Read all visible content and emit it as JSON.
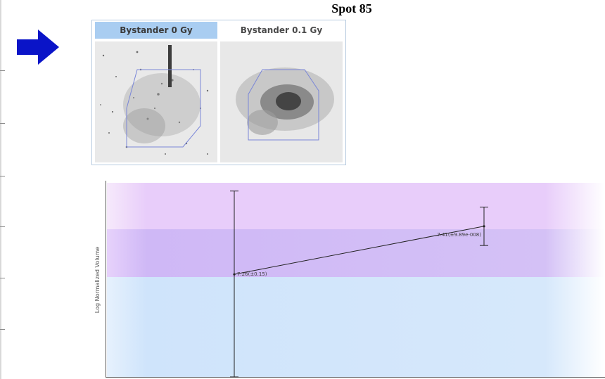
{
  "title": "Spot 85",
  "panels": [
    {
      "label": "Bystander 0 Gy"
    },
    {
      "label": "Bystander 0.1 Gy"
    }
  ],
  "colors": {
    "arrow": "#0a14c8",
    "header_selected": "#a9cdf1",
    "band_top": "#e8cdfa",
    "band_mid": "#cfb8f6",
    "band_low": "#cfe4fb",
    "outline": "#7a86d8"
  },
  "icons": {
    "arrow": "right-arrow-icon"
  },
  "chart_data": {
    "type": "line",
    "ylabel": "Log Normalized Volume",
    "xlabel": "",
    "series": [
      {
        "points": [
          {
            "label": "7.26(±0.15)",
            "mean": 7.26,
            "sd": 0.15
          },
          {
            "label": "7.41(±9.89e-008)",
            "mean": 7.41,
            "sd": 9.89e-08
          }
        ]
      }
    ],
    "error_bars": [
      {
        "low": 6.94,
        "high": 7.52
      },
      {
        "low": 7.35,
        "high": 7.47
      }
    ],
    "reference_bands": [
      "top",
      "mid",
      "low"
    ],
    "grid": false,
    "legend": false
  }
}
